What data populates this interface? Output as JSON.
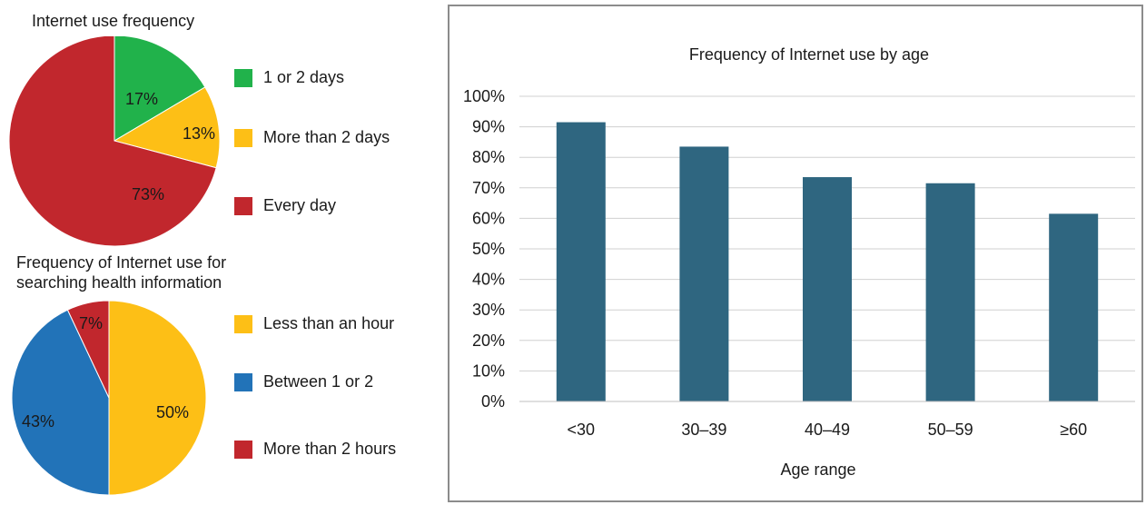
{
  "chart_data": [
    {
      "type": "pie",
      "title": "Internet use frequency",
      "categories": [
        "1 or 2 days",
        "More than 2 days",
        "Every day"
      ],
      "values": [
        17,
        13,
        73
      ],
      "labels": [
        "17%",
        "13%",
        "73%"
      ],
      "colors": [
        "#21b24b",
        "#fdbf16",
        "#c1272d"
      ],
      "legend_position": "right"
    },
    {
      "type": "pie",
      "title": "Frequency of Internet use for searching health information",
      "title_lines": [
        "Frequency of Internet use for",
        "searching health information"
      ],
      "categories": [
        "Less than an hour",
        "Between 1 or 2",
        "More than 2 hours"
      ],
      "values": [
        50,
        43,
        7
      ],
      "labels": [
        "50%",
        "43%",
        "7%"
      ],
      "colors": [
        "#fdbf16",
        "#2273b8",
        "#c1272d"
      ],
      "legend_position": "right"
    },
    {
      "type": "bar",
      "title": "Frequency of Internet use by age",
      "xlabel": "Age range",
      "ylabel": "",
      "categories": [
        "<30",
        "30–39",
        "40–49",
        "50–59",
        "≥60"
      ],
      "values": [
        91.5,
        83.5,
        73.5,
        71.5,
        61.5
      ],
      "ylim": [
        0,
        100
      ],
      "yticks": [
        "0%",
        "10%",
        "20%",
        "30%",
        "40%",
        "50%",
        "60%",
        "70%",
        "80%",
        "90%",
        "100%"
      ],
      "bar_color": "#2f6680",
      "grid": true
    }
  ]
}
